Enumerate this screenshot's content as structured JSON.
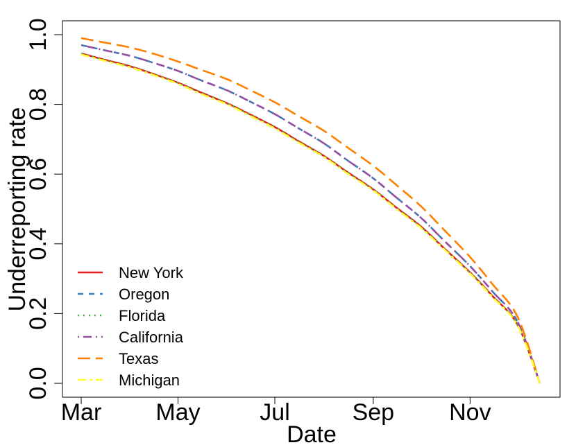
{
  "chart_data": {
    "type": "line",
    "xlabel": "Date",
    "ylabel": "Underreporting rate",
    "ylim": [
      0,
      1
    ],
    "yticks": [
      "0.0",
      "0.2",
      "0.4",
      "0.6",
      "0.8",
      "1.0"
    ],
    "xticks": [
      "Mar",
      "May",
      "Jul",
      "Sep",
      "Nov"
    ],
    "grid": false,
    "legend_position": "bottom-left",
    "x": [
      "2020-03-01",
      "2020-03-15",
      "2020-04-01",
      "2020-04-15",
      "2020-05-01",
      "2020-05-15",
      "2020-06-01",
      "2020-06-15",
      "2020-07-01",
      "2020-07-15",
      "2020-08-01",
      "2020-08-15",
      "2020-09-01",
      "2020-09-15",
      "2020-10-01",
      "2020-10-15",
      "2020-11-01",
      "2020-11-15",
      "2020-12-01",
      "2020-12-15"
    ],
    "series": [
      {
        "name": "New York",
        "color": "#e41a1c",
        "dash": "solid",
        "values": [
          0.946,
          0.929,
          0.909,
          0.888,
          0.862,
          0.835,
          0.803,
          0.772,
          0.735,
          0.697,
          0.652,
          0.608,
          0.556,
          0.506,
          0.45,
          0.39,
          0.318,
          0.251,
          0.167,
          0.0
        ]
      },
      {
        "name": "Oregon",
        "color": "#377eb8",
        "dash": "dashed",
        "values": [
          0.97,
          0.956,
          0.939,
          0.92,
          0.896,
          0.87,
          0.84,
          0.809,
          0.772,
          0.734,
          0.688,
          0.642,
          0.588,
          0.535,
          0.475,
          0.412,
          0.336,
          0.264,
          0.176,
          0.0
        ]
      },
      {
        "name": "Florida",
        "color": "#4daf4a",
        "dash": "dotted",
        "values": [
          0.946,
          0.929,
          0.909,
          0.888,
          0.862,
          0.835,
          0.803,
          0.772,
          0.735,
          0.697,
          0.652,
          0.608,
          0.556,
          0.506,
          0.45,
          0.39,
          0.318,
          0.251,
          0.167,
          0.0
        ]
      },
      {
        "name": "California",
        "color": "#984ea3",
        "dash": "dotdash",
        "values": [
          0.97,
          0.956,
          0.939,
          0.92,
          0.896,
          0.87,
          0.84,
          0.809,
          0.772,
          0.734,
          0.688,
          0.642,
          0.588,
          0.535,
          0.475,
          0.412,
          0.336,
          0.264,
          0.176,
          0.0
        ]
      },
      {
        "name": "Texas",
        "color": "#ff7f00",
        "dash": "longdash",
        "values": [
          0.99,
          0.978,
          0.963,
          0.946,
          0.923,
          0.9,
          0.872,
          0.842,
          0.806,
          0.769,
          0.724,
          0.679,
          0.624,
          0.571,
          0.508,
          0.443,
          0.362,
          0.285,
          0.19,
          0.0
        ]
      },
      {
        "name": "Michigan",
        "color": "#ffff33",
        "dash": "twodash",
        "values": [
          0.943,
          0.926,
          0.906,
          0.885,
          0.859,
          0.831,
          0.8,
          0.768,
          0.731,
          0.693,
          0.649,
          0.604,
          0.553,
          0.502,
          0.446,
          0.387,
          0.315,
          0.248,
          0.165,
          0.0
        ]
      }
    ]
  }
}
